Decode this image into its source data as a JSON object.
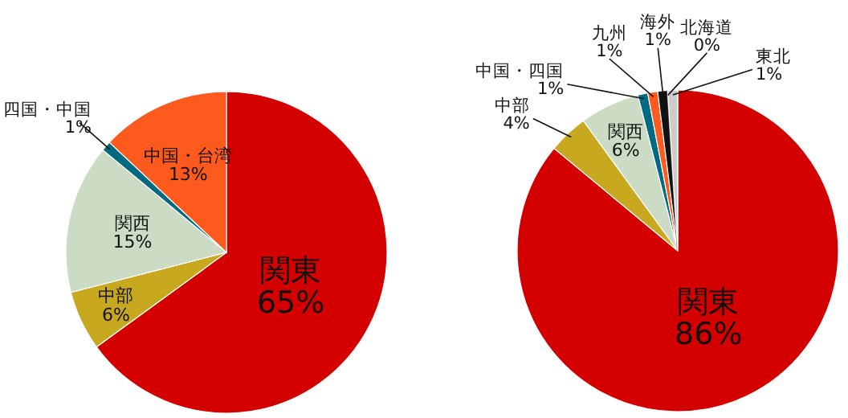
{
  "chart_data": [
    {
      "type": "pie",
      "categories": [
        "関東",
        "中部",
        "関西",
        "四国・中国",
        "中国・台湾"
      ],
      "values": [
        65,
        6,
        15,
        1,
        13
      ],
      "value_labels": [
        "65%",
        "6%",
        "15%",
        "1%",
        "13%"
      ],
      "colors": [
        "#d40000",
        "#c8a81e",
        "#ccdcc4",
        "#006b80",
        "#ff5a1e"
      ],
      "data_labels": true
    },
    {
      "type": "pie",
      "categories": [
        "関東",
        "中部",
        "関西",
        "中国・四国",
        "九州",
        "海外",
        "北海道",
        "東北"
      ],
      "values": [
        86,
        4,
        6,
        1,
        1,
        1,
        0,
        1
      ],
      "value_labels": [
        "86%",
        "4%",
        "6%",
        "1%",
        "1%",
        "1%",
        "0%",
        "1%"
      ],
      "colors": [
        "#d40000",
        "#c8a81e",
        "#ccdcc4",
        "#006b80",
        "#ff5a1e",
        "#111111",
        "#777777",
        "#cccccc"
      ],
      "data_labels": true
    }
  ]
}
